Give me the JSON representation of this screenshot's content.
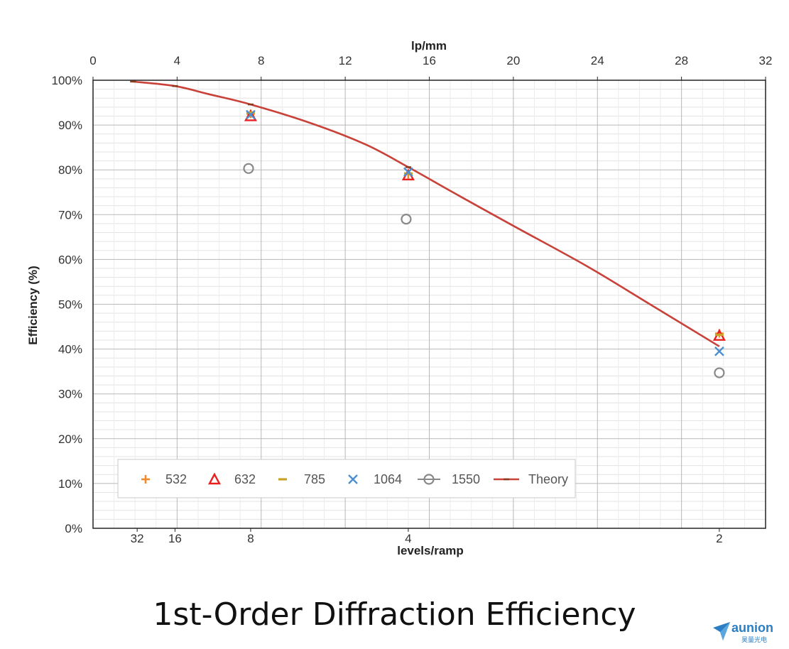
{
  "chart_data": {
    "type": "scatter",
    "title": "",
    "ylabel": "Efficiency (%)",
    "x_top_label": "lp/mm",
    "x_bottom_label": "levels/ramp",
    "xlim": [
      0,
      32
    ],
    "ylim": [
      0,
      100
    ],
    "grid": true,
    "legend_position": "bottom-left",
    "top_ticks": [
      {
        "value": 0,
        "label": "0"
      },
      {
        "value": 4,
        "label": "4"
      },
      {
        "value": 8,
        "label": "8"
      },
      {
        "value": 12,
        "label": "12"
      },
      {
        "value": 16,
        "label": "16"
      },
      {
        "value": 20,
        "label": "20"
      },
      {
        "value": 24,
        "label": "24"
      },
      {
        "value": 28,
        "label": "28"
      },
      {
        "value": 32,
        "label": "32"
      }
    ],
    "bottom_ticks": [
      {
        "value": 2.1,
        "label": "32"
      },
      {
        "value": 3.9,
        "label": "16"
      },
      {
        "value": 7.5,
        "label": "8"
      },
      {
        "value": 15,
        "label": "4"
      },
      {
        "value": 29.8,
        "label": "2"
      }
    ],
    "y_ticks": [
      {
        "value": 0,
        "label": "0%"
      },
      {
        "value": 10,
        "label": "10%"
      },
      {
        "value": 20,
        "label": "20%"
      },
      {
        "value": 30,
        "label": "30%"
      },
      {
        "value": 40,
        "label": "40%"
      },
      {
        "value": 50,
        "label": "50%"
      },
      {
        "value": 60,
        "label": "60%"
      },
      {
        "value": 70,
        "label": "70%"
      },
      {
        "value": 80,
        "label": "80%"
      },
      {
        "value": 90,
        "label": "90%"
      },
      {
        "value": 100,
        "label": "100%"
      }
    ],
    "series": [
      {
        "name": "532",
        "marker": "plus",
        "color": "#f08a2c",
        "points": [
          {
            "x": 7.5,
            "y": 92.5
          },
          {
            "x": 15,
            "y": 79.0
          },
          {
            "x": 29.8,
            "y": 43.5
          }
        ]
      },
      {
        "name": "632",
        "marker": "triangle",
        "color": "#e8201e",
        "points": [
          {
            "x": 7.5,
            "y": 92.0
          },
          {
            "x": 15,
            "y": 78.8
          },
          {
            "x": 29.8,
            "y": 43.0
          }
        ]
      },
      {
        "name": "785",
        "marker": "dash",
        "color": "#c9a227",
        "points": [
          {
            "x": 7.5,
            "y": 92.8
          },
          {
            "x": 15,
            "y": 79.2
          },
          {
            "x": 29.8,
            "y": 43.2
          }
        ]
      },
      {
        "name": "1064",
        "marker": "x",
        "color": "#4b8fd1",
        "points": [
          {
            "x": 7.5,
            "y": 92.3
          },
          {
            "x": 15,
            "y": 79.5
          },
          {
            "x": 29.8,
            "y": 39.5
          }
        ]
      },
      {
        "name": "1550",
        "marker": "circle",
        "color": "#888888",
        "points": [
          {
            "x": 7.4,
            "y": 80.3
          },
          {
            "x": 14.9,
            "y": 69.0
          },
          {
            "x": 29.8,
            "y": 34.7
          }
        ]
      },
      {
        "name": "Theory",
        "marker": "line",
        "color": "#c8423a",
        "points": [
          {
            "x": 1.9,
            "y": 99.7
          },
          {
            "x": 3.9,
            "y": 98.7
          },
          {
            "x": 5.5,
            "y": 96.9
          },
          {
            "x": 7.5,
            "y": 94.6
          },
          {
            "x": 10.5,
            "y": 90.2
          },
          {
            "x": 13,
            "y": 85.6
          },
          {
            "x": 15,
            "y": 80.6
          },
          {
            "x": 17.5,
            "y": 74.0
          },
          {
            "x": 20,
            "y": 67.5
          },
          {
            "x": 23.5,
            "y": 58.5
          },
          {
            "x": 26.5,
            "y": 50.0
          },
          {
            "x": 29.8,
            "y": 40.6
          }
        ]
      }
    ]
  },
  "caption": "1st-Order Diffraction Efficiency",
  "brand": {
    "name": "aunion",
    "sub": "昊量光电"
  }
}
